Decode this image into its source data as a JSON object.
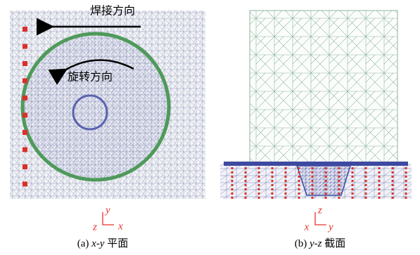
{
  "panels": [
    {
      "annotations": {
        "weld_direction": "焊接方向",
        "rotation_direction": "旋转方向"
      },
      "axes": {
        "up": "y",
        "left": "z",
        "right": "x"
      },
      "caption": {
        "label": "(a)",
        "variable": "x-y",
        "text": "平面"
      }
    },
    {
      "axes": {
        "up": "z",
        "left": "x",
        "right": "y"
      },
      "caption": {
        "label": "(b)",
        "variable": "y-z",
        "text": "截面"
      }
    }
  ]
}
